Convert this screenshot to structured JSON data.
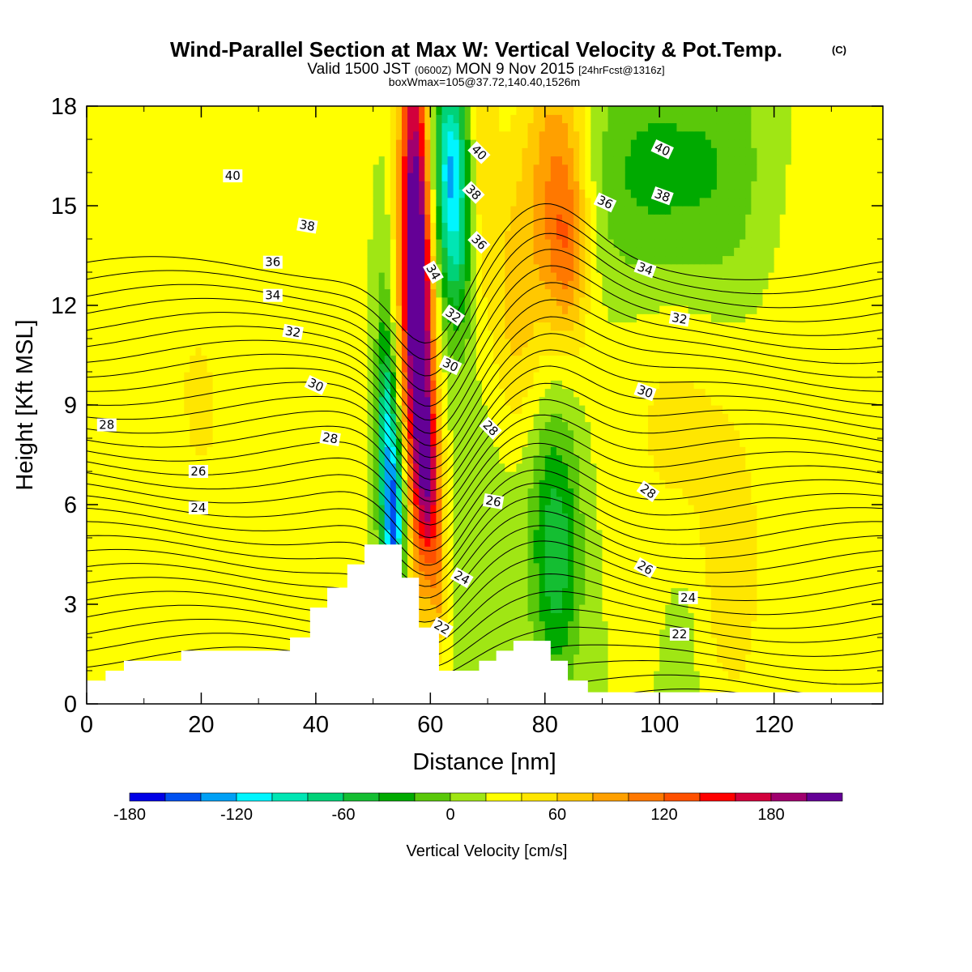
{
  "title": {
    "main": "Wind-Parallel Section at Max W: Vertical Velocity & Pot.Temp.",
    "copyright": "(C)",
    "sub_a": "Valid 1500 JST",
    "sub_b": "(0600Z)",
    "sub_c": "MON 9 Nov 2015",
    "sub_d": "[24hrFcst@1316z]",
    "box": "boxWmax=105@37.72,140.40,1526m"
  },
  "chart_data": {
    "type": "heatmap",
    "xlabel": "Distance [nm]",
    "ylabel": "Height [Kft MSL]",
    "xlim": [
      0,
      139
    ],
    "ylim": [
      0,
      18
    ],
    "xticks": [
      0,
      20,
      40,
      60,
      80,
      100,
      120
    ],
    "yticks": [
      0,
      3,
      6,
      9,
      12,
      15,
      18
    ],
    "grid": false,
    "colorbar": {
      "title": "Vertical Velocity [cm/s]",
      "labels": [
        -180,
        -120,
        -60,
        0,
        60,
        120,
        180
      ],
      "bins": [
        {
          "min": -200,
          "max": -180,
          "color": "#0000e6"
        },
        {
          "min": -180,
          "max": -160,
          "color": "#0050f0"
        },
        {
          "min": -160,
          "max": -140,
          "color": "#00a0f5"
        },
        {
          "min": -140,
          "max": -120,
          "color": "#00f5ff"
        },
        {
          "min": -120,
          "max": -100,
          "color": "#00e6b4"
        },
        {
          "min": -100,
          "max": -80,
          "color": "#00d278"
        },
        {
          "min": -80,
          "max": -60,
          "color": "#14be32"
        },
        {
          "min": -60,
          "max": -40,
          "color": "#00aa00"
        },
        {
          "min": -40,
          "max": -20,
          "color": "#5ac80a"
        },
        {
          "min": -20,
          "max": 0,
          "color": "#a0e614"
        },
        {
          "min": 0,
          "max": 20,
          "color": "#ffff00"
        },
        {
          "min": 20,
          "max": 40,
          "color": "#ffe600"
        },
        {
          "min": 40,
          "max": 60,
          "color": "#ffc800"
        },
        {
          "min": 60,
          "max": 80,
          "color": "#ffa000"
        },
        {
          "min": 80,
          "max": 100,
          "color": "#ff7800"
        },
        {
          "min": 100,
          "max": 120,
          "color": "#ff5000"
        },
        {
          "min": 120,
          "max": 140,
          "color": "#ff0000"
        },
        {
          "min": 140,
          "max": 160,
          "color": "#d2003c"
        },
        {
          "min": 160,
          "max": 180,
          "color": "#a0006e"
        },
        {
          "min": 180,
          "max": 200,
          "color": "#640096"
        }
      ]
    },
    "terrain_profile": [
      [
        0,
        0.7
      ],
      [
        3.3,
        0.7
      ],
      [
        3.3,
        1.0
      ],
      [
        6.5,
        1.0
      ],
      [
        6.5,
        1.3
      ],
      [
        16.5,
        1.3
      ],
      [
        16.5,
        1.6
      ],
      [
        35.5,
        1.6
      ],
      [
        35.5,
        2.0
      ],
      [
        39,
        2.0
      ],
      [
        39,
        2.9
      ],
      [
        42,
        2.9
      ],
      [
        42,
        3.5
      ],
      [
        45.5,
        3.5
      ],
      [
        45.5,
        4.2
      ],
      [
        48.5,
        4.2
      ],
      [
        48.5,
        4.8
      ],
      [
        55,
        4.8
      ],
      [
        55,
        3.8
      ],
      [
        58,
        3.8
      ],
      [
        58,
        2.3
      ],
      [
        61.5,
        2.3
      ],
      [
        61.5,
        1.0
      ],
      [
        68.5,
        1.0
      ],
      [
        68.5,
        1.3
      ],
      [
        71.5,
        1.3
      ],
      [
        71.5,
        1.6
      ],
      [
        74.5,
        1.6
      ],
      [
        74.5,
        1.9
      ],
      [
        81,
        1.9
      ],
      [
        81,
        1.3
      ],
      [
        84,
        1.3
      ],
      [
        84,
        0.7
      ],
      [
        87.5,
        0.7
      ],
      [
        87.5,
        0.35
      ],
      [
        139,
        0.35
      ]
    ],
    "velocity_features": [
      {
        "x": 10,
        "y": 11,
        "sx": 14,
        "sy": 6,
        "v": 10
      },
      {
        "x": 22,
        "y": 6,
        "sx": 9,
        "sy": 10,
        "v": 14
      },
      {
        "x": 40,
        "y": 11,
        "sx": 6,
        "sy": 6,
        "v": 6
      },
      {
        "x": 9,
        "y": 4,
        "sx": 3,
        "sy": 3,
        "v": 8
      },
      {
        "x": 57,
        "y": 14.5,
        "sx": 1.8,
        "sy": 5,
        "v": 175
      },
      {
        "x": 58.5,
        "y": 10,
        "sx": 1.6,
        "sy": 4,
        "v": 130
      },
      {
        "x": 60,
        "y": 6.5,
        "sx": 1.4,
        "sy": 2,
        "v": 100
      },
      {
        "x": 61.5,
        "y": 3.5,
        "sx": 1.0,
        "sy": 1.5,
        "v": 50
      },
      {
        "x": 63.5,
        "y": 16.5,
        "sx": 2.2,
        "sy": 2,
        "v": -120
      },
      {
        "x": 64.5,
        "y": 13.5,
        "sx": 2.0,
        "sy": 2,
        "v": -70
      },
      {
        "x": 53.5,
        "y": 5.5,
        "sx": 1.4,
        "sy": 1.8,
        "v": -175
      },
      {
        "x": 52.5,
        "y": 8.5,
        "sx": 1.2,
        "sy": 1.5,
        "v": -70
      },
      {
        "x": 52,
        "y": 10.5,
        "sx": 1.2,
        "sy": 2.5,
        "v": -40
      },
      {
        "x": 75,
        "y": 11,
        "sx": 3.5,
        "sy": 3.5,
        "v": 60
      },
      {
        "x": 82,
        "y": 16,
        "sx": 4,
        "sy": 3,
        "v": 75
      },
      {
        "x": 84,
        "y": 13.5,
        "sx": 2.5,
        "sy": 2,
        "v": 55
      },
      {
        "x": 69,
        "y": 16.5,
        "sx": 2,
        "sy": 3,
        "v": 35
      },
      {
        "x": 82,
        "y": 4.5,
        "sx": 3,
        "sy": 2.8,
        "v": -70
      },
      {
        "x": 75,
        "y": 8,
        "sx": 5,
        "sy": 3,
        "v": -30
      },
      {
        "x": 98,
        "y": 16,
        "sx": 9,
        "sy": 2.5,
        "v": -45
      },
      {
        "x": 112,
        "y": 16,
        "sx": 6,
        "sy": 3,
        "v": -25
      },
      {
        "x": 103,
        "y": 8.5,
        "sx": 8,
        "sy": 3,
        "v": 25
      },
      {
        "x": 113,
        "y": 3.5,
        "sx": 4,
        "sy": 3,
        "v": 30
      },
      {
        "x": 126,
        "y": 13,
        "sx": 8,
        "sy": 4,
        "v": 10
      },
      {
        "x": 104,
        "y": 1.5,
        "sx": 2,
        "sy": 2,
        "v": -15
      },
      {
        "x": 136,
        "y": 15,
        "sx": 3,
        "sy": 5,
        "v": 12
      }
    ],
    "theta_levels": [
      14,
      15,
      16,
      17,
      18,
      19,
      20,
      21,
      22,
      23,
      24,
      25,
      26,
      27,
      28,
      29,
      30,
      31,
      32,
      33,
      34,
      35,
      36,
      37,
      38,
      39,
      40,
      41,
      42,
      43,
      44,
      45,
      46,
      47,
      48
    ],
    "theta_labels": [
      {
        "value": 40,
        "x": 25.5,
        "y": 15.9,
        "rot": 0
      },
      {
        "value": 38,
        "x": 38.5,
        "y": 14.4,
        "rot": -10
      },
      {
        "value": 36,
        "x": 32.5,
        "y": 13.3,
        "rot": 0
      },
      {
        "value": 34,
        "x": 32.5,
        "y": 12.3,
        "rot": 0
      },
      {
        "value": 32,
        "x": 36,
        "y": 11.2,
        "rot": -10
      },
      {
        "value": 30,
        "x": 40,
        "y": 9.6,
        "rot": -25
      },
      {
        "value": 28,
        "x": 42.5,
        "y": 8.0,
        "rot": -10
      },
      {
        "value": 28,
        "x": 3.5,
        "y": 8.4,
        "rot": 0
      },
      {
        "value": 26,
        "x": 19.5,
        "y": 7.0,
        "rot": 0
      },
      {
        "value": 24,
        "x": 19.5,
        "y": 5.9,
        "rot": 0
      },
      {
        "value": 40,
        "x": 68.5,
        "y": 16.6,
        "rot": -45
      },
      {
        "value": 38,
        "x": 67.5,
        "y": 15.4,
        "rot": -45
      },
      {
        "value": 36,
        "x": 68.5,
        "y": 13.9,
        "rot": -45
      },
      {
        "value": 34,
        "x": 60.5,
        "y": 13.0,
        "rot": -60
      },
      {
        "value": 32,
        "x": 64,
        "y": 11.7,
        "rot": -35
      },
      {
        "value": 30,
        "x": 63.5,
        "y": 10.2,
        "rot": -25
      },
      {
        "value": 28,
        "x": 70.5,
        "y": 8.3,
        "rot": -45
      },
      {
        "value": 26,
        "x": 71,
        "y": 6.1,
        "rot": -10
      },
      {
        "value": 24,
        "x": 65.5,
        "y": 3.8,
        "rot": -30
      },
      {
        "value": 22,
        "x": 62,
        "y": 2.3,
        "rot": -30
      },
      {
        "value": 40,
        "x": 100.5,
        "y": 16.7,
        "rot": -25
      },
      {
        "value": 38,
        "x": 100.5,
        "y": 15.3,
        "rot": -20
      },
      {
        "value": 36,
        "x": 90.5,
        "y": 15.1,
        "rot": -25
      },
      {
        "value": 34,
        "x": 97.5,
        "y": 13.1,
        "rot": -20
      },
      {
        "value": 32,
        "x": 103.5,
        "y": 11.6,
        "rot": -10
      },
      {
        "value": 30,
        "x": 97.5,
        "y": 9.4,
        "rot": -20
      },
      {
        "value": 28,
        "x": 98,
        "y": 6.4,
        "rot": -35
      },
      {
        "value": 26,
        "x": 97.5,
        "y": 4.1,
        "rot": -30
      },
      {
        "value": 24,
        "x": 105,
        "y": 3.2,
        "rot": 0
      },
      {
        "value": 22,
        "x": 103.5,
        "y": 2.1,
        "rot": 0
      }
    ]
  }
}
